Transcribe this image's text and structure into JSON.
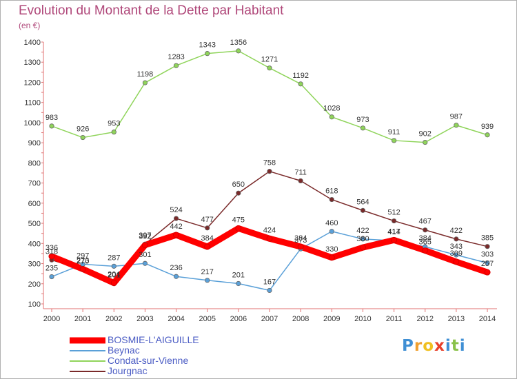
{
  "title": "Evolution du Montant de la Dette par Habitant",
  "subtitle": "(en €)",
  "chart_data": {
    "type": "line",
    "x": [
      "2000",
      "2001",
      "2002",
      "2003",
      "2004",
      "2005",
      "2006",
      "2007",
      "2008",
      "2009",
      "2010",
      "2011",
      "2012",
      "2013",
      "2014"
    ],
    "ylim": [
      100,
      1400
    ],
    "yticks": [
      100,
      200,
      300,
      400,
      500,
      600,
      700,
      800,
      900,
      1000,
      1100,
      1200,
      1300,
      1400
    ],
    "grid": false,
    "legend_position": "bottom-left",
    "series": [
      {
        "name": "Condat-sur-Vienne",
        "color": "#8fd45a",
        "values": [
          983,
          926,
          953,
          1198,
          1283,
          1343,
          1356,
          1271,
          1192,
          1028,
          973,
          911,
          902,
          987,
          939
        ],
        "labels": [
          "983",
          "926",
          "953",
          "1198",
          "1283",
          "1343",
          "1356",
          "1271",
          "1192",
          "1028",
          "973",
          "911",
          "902",
          "987",
          "939"
        ]
      },
      {
        "name": "Jourgnac",
        "color": "#7a2a2a",
        "values": [
          318,
          270,
          201,
          397,
          524,
          477,
          650,
          758,
          711,
          618,
          564,
          512,
          467,
          422,
          385
        ],
        "labels": [
          "318",
          "270",
          "201",
          "397",
          "524",
          "477",
          "650",
          "758",
          "711",
          "618",
          "564",
          "512",
          "467",
          "422",
          "385"
        ]
      },
      {
        "name": "Beynac",
        "color": "#5aa0d8",
        "values": [
          235,
          297,
          287,
          301,
          236,
          217,
          201,
          167,
          373,
          460,
          422,
          414,
          384,
          343,
          303
        ],
        "labels": [
          "235",
          "297",
          "287",
          "301",
          "236",
          "217",
          "201",
          "167",
          "373",
          "460",
          "422",
          "414",
          "384",
          "343",
          "303"
        ]
      },
      {
        "name": "BOSMIE-L'AIGUILLE",
        "color": "#ff0000",
        "values": [
          336,
          273,
          204,
          392,
          442,
          384,
          475,
          424,
          384,
          330,
          380,
          417,
          365,
          309,
          257
        ],
        "labels": [
          "336",
          "273",
          "204",
          "392",
          "442",
          "384",
          "475",
          "424",
          "384",
          "330",
          "380",
          "417",
          "365",
          "309",
          "257"
        ]
      }
    ]
  },
  "legend": [
    {
      "name": "BOSMIE-L'AIGUILLE",
      "color": "#ff0000"
    },
    {
      "name": "Beynac",
      "color": "#5aa0d8"
    },
    {
      "name": "Condat-sur-Vienne",
      "color": "#8fd45a"
    },
    {
      "name": "Jourgnac",
      "color": "#7a2a2a"
    }
  ],
  "logo": {
    "letters": [
      "P",
      "r",
      "o",
      "x",
      "i",
      "t",
      "i"
    ],
    "colors": [
      "#3f8fd4",
      "#f0a030",
      "#f0c020",
      "#e8402a",
      "#3f8fd4",
      "#8ac24a",
      "#3f8fd4"
    ]
  }
}
